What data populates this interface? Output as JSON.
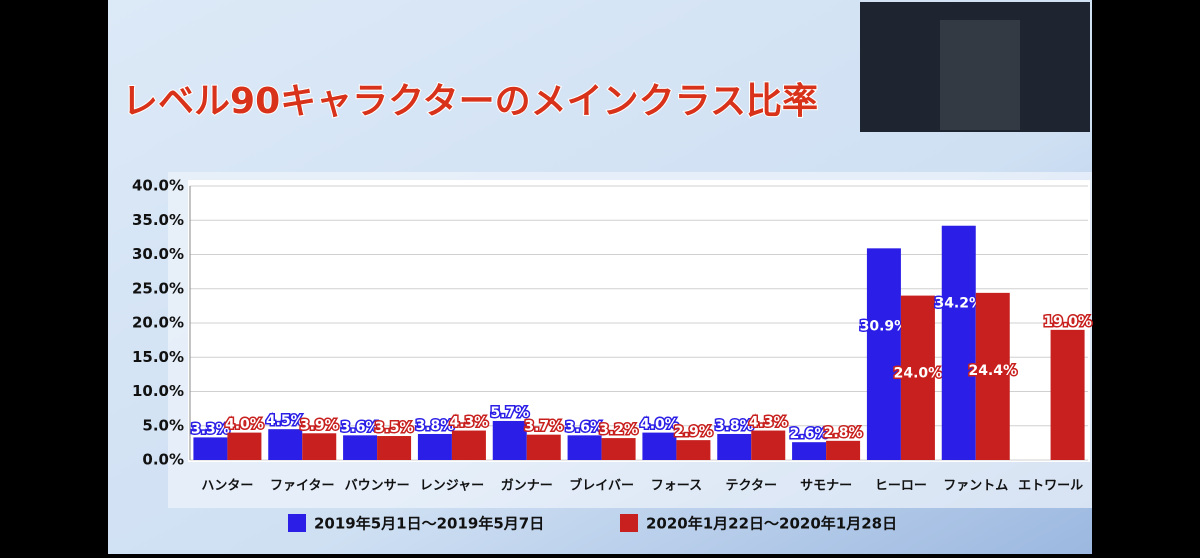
{
  "chart_data": {
    "type": "bar",
    "title": "レベル90キャラクターのメインクラス比率",
    "categories": [
      "ハンター",
      "ファイター",
      "バウンサー",
      "レンジャー",
      "ガンナー",
      "ブレイバー",
      "フォース",
      "テクター",
      "サモナー",
      "ヒーロー",
      "ファントム",
      "エトワール"
    ],
    "series": [
      {
        "name": "2019年5月1日～2019年5月7日",
        "color": "#2b1ee6",
        "values": [
          3.3,
          4.5,
          3.6,
          3.8,
          5.7,
          3.6,
          4.0,
          3.8,
          2.6,
          30.9,
          34.2,
          null
        ],
        "value_labels": [
          "3.3%",
          "4.5%",
          "3.6%",
          "3.8%",
          "5.7%",
          "3.6%",
          "4.0%",
          "3.8%",
          "2.6%",
          "30.9%",
          "34.2%",
          null
        ]
      },
      {
        "name": "2020年1月22日～2020年1月28日",
        "color": "#c8201e",
        "values": [
          4.0,
          3.9,
          3.5,
          4.3,
          3.7,
          3.2,
          2.9,
          4.3,
          2.8,
          24.0,
          24.4,
          19.0
        ],
        "value_labels": [
          "4.0%",
          "3.9%",
          "3.5%",
          "4.3%",
          "3.7%",
          "3.2%",
          "2.9%",
          "4.3%",
          "2.8%",
          "24.0%",
          "24.4%",
          "19.0%"
        ]
      }
    ],
    "ylim": [
      0,
      40
    ],
    "yticks": [
      {
        "value": 0,
        "label": "0.0%"
      },
      {
        "value": 5,
        "label": "5.0%"
      },
      {
        "value": 10,
        "label": "10.0%"
      },
      {
        "value": 15,
        "label": "15.0%"
      },
      {
        "value": 20,
        "label": "20.0%"
      },
      {
        "value": 25,
        "label": "25.0%"
      },
      {
        "value": 30,
        "label": "30.0%"
      },
      {
        "value": 35,
        "label": "35.0%"
      },
      {
        "value": 40,
        "label": "40.0%"
      }
    ],
    "grid": true
  }
}
